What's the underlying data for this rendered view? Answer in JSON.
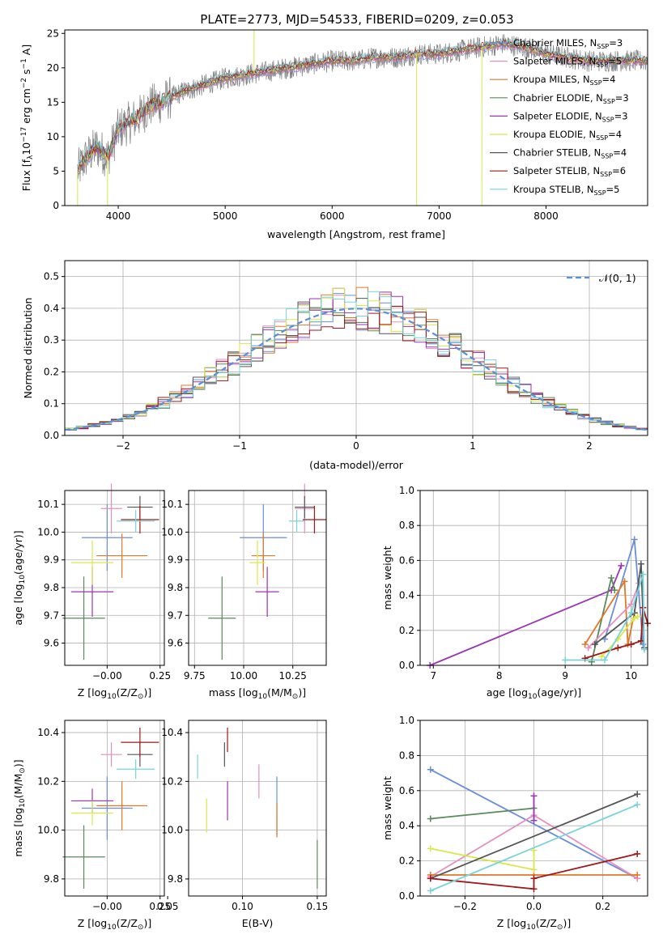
{
  "title": "PLATE=2773, MJD=54533, FIBERID=0209, z=0.053",
  "colors": {
    "chabrier_miles": "#6a8fd8",
    "salpeter_miles": "#e58fc0",
    "kroupa_miles": "#e0782a",
    "chabrier_elodie": "#5a8a5a",
    "salpeter_elodie": "#9a35b5",
    "kroupa_elodie": "#d8e84a",
    "chabrier_stelib": "#555555",
    "salpeter_stelib": "#a01818",
    "kroupa_stelib": "#78d4d8",
    "spectrum": "#808080"
  },
  "chart_data": [
    {
      "id": "spectrum",
      "type": "line",
      "xlabel": "wavelength [Angstrom, rest frame]",
      "ylabel": "Flux [f",
      "ylabel_sub": "λ",
      "ylabel_rest": "10",
      "ylabel_exp": "−17",
      "ylabel_units": " erg cm",
      "ylabel_units2": " s",
      "ylabel_units3": " A",
      "xlim": [
        3500,
        8950
      ],
      "ylim": [
        0,
        25.5
      ],
      "xticks": [
        "4000",
        "5000",
        "6000",
        "7000",
        "8000"
      ],
      "yticks": [
        "0",
        "5",
        "10",
        "15",
        "20",
        "25"
      ],
      "legend_position": "top-right",
      "legend": [
        {
          "label": "Chabrier MILES, N",
          "sub": "SSP",
          "val": "=3",
          "color_key": "chabrier_miles"
        },
        {
          "label": "Salpeter MILES, N",
          "sub": "SSP",
          "val": "=5",
          "color_key": "salpeter_miles"
        },
        {
          "label": "Kroupa MILES, N",
          "sub": "SSP",
          "val": "=4",
          "color_key": "kroupa_miles"
        },
        {
          "label": "Chabrier ELODIE, N",
          "sub": "SSP",
          "val": "=3",
          "color_key": "chabrier_elodie"
        },
        {
          "label": "Salpeter ELODIE, N",
          "sub": "SSP",
          "val": "=3",
          "color_key": "salpeter_elodie"
        },
        {
          "label": "Kroupa ELODIE, N",
          "sub": "SSP",
          "val": "=4",
          "color_key": "kroupa_elodie"
        },
        {
          "label": "Chabrier STELIB, N",
          "sub": "SSP",
          "val": "=4",
          "color_key": "chabrier_stelib"
        },
        {
          "label": "Salpeter STELIB, N",
          "sub": "SSP",
          "val": "=6",
          "color_key": "salpeter_stelib"
        },
        {
          "label": "Kroupa STELIB, N",
          "sub": "SSP",
          "val": "=5",
          "color_key": "kroupa_stelib"
        }
      ],
      "continuum": {
        "x": [
          3620,
          3700,
          3800,
          3900,
          4000,
          4100,
          4200,
          4300,
          4400,
          4600,
          4800,
          5000,
          5200,
          5400,
          5600,
          5800,
          6000,
          6200,
          6400,
          6600,
          6800,
          7000,
          7200,
          7400,
          7600,
          7800,
          8000,
          8200,
          8400,
          8600,
          8900
        ],
        "y": [
          5,
          7,
          8.5,
          7,
          11,
          12,
          13,
          14.5,
          15,
          16.5,
          17.5,
          18.5,
          19,
          19.5,
          20,
          20.5,
          21,
          21,
          21.5,
          21.5,
          22,
          22,
          22.5,
          23,
          23.5,
          23,
          22,
          21.5,
          21,
          21,
          21
        ]
      },
      "spikes": [
        {
          "x": 5270,
          "y": 25.5
        },
        {
          "x": 6790,
          "y": 0
        },
        {
          "x": 7400,
          "y": 0
        },
        {
          "x": 3620,
          "y": 0
        },
        {
          "x": 3900,
          "y": 0
        }
      ]
    },
    {
      "id": "residual_hist",
      "type": "histogram",
      "xlabel": "(data-model)/error",
      "ylabel": "Normed distribution",
      "xlim": [
        -2.5,
        2.5
      ],
      "ylim": [
        0,
        0.55
      ],
      "xticks": [
        "−2",
        "−1",
        "0",
        "1",
        "2"
      ],
      "yticks": [
        "0.0",
        "0.1",
        "0.2",
        "0.3",
        "0.4",
        "0.5"
      ],
      "bin_width": 0.1,
      "legend": {
        "label": "𝒩(0, 1)",
        "position": "top-right"
      },
      "normal": {
        "mean": 0,
        "sigma": 1
      }
    },
    {
      "id": "age_vs_Z",
      "type": "errorbar",
      "xlabel": "Z [log",
      "xlabel_sub": "10",
      "xlabel_rest": "(Z/Z",
      "ylabel": "age  [log",
      "ylabel_sub": "10",
      "ylabel_rest": "(age/yr)]",
      "xlim": [
        -0.2,
        0.27
      ],
      "ylim": [
        9.52,
        10.15
      ],
      "xticks": [
        "−0.00",
        "0.25"
      ],
      "yticks": [
        "9.6",
        "9.7",
        "9.8",
        "9.9",
        "10.0",
        "10.1"
      ],
      "points": [
        {
          "key": "chabrier_miles",
          "x": 0.0,
          "xerr": 0.12,
          "y": 9.98,
          "yerr": 0.12
        },
        {
          "key": "salpeter_miles",
          "x": 0.02,
          "xerr": 0.05,
          "y": 10.085,
          "yerr": 0.09
        },
        {
          "key": "kroupa_miles",
          "x": 0.07,
          "xerr": 0.12,
          "y": 9.915,
          "yerr": 0.08
        },
        {
          "key": "chabrier_elodie",
          "x": -0.11,
          "xerr": 0.1,
          "y": 9.69,
          "yerr": 0.15
        },
        {
          "key": "salpeter_elodie",
          "x": -0.07,
          "xerr": 0.1,
          "y": 9.785,
          "yerr": 0.09
        },
        {
          "key": "kroupa_elodie",
          "x": -0.07,
          "xerr": 0.1,
          "y": 9.89,
          "yerr": 0.08
        },
        {
          "key": "chabrier_stelib",
          "x": 0.155,
          "xerr": 0.06,
          "y": 10.09,
          "yerr": 0.04
        },
        {
          "key": "salpeter_stelib",
          "x": 0.155,
          "xerr": 0.09,
          "y": 10.045,
          "yerr": 0.05
        },
        {
          "key": "kroupa_stelib",
          "x": 0.135,
          "xerr": 0.09,
          "y": 10.04,
          "yerr": 0.04
        }
      ]
    },
    {
      "id": "age_vs_mass",
      "type": "errorbar",
      "xlabel": "mass [log",
      "xlabel_sub": "10",
      "xlabel_rest": "(M/M",
      "xlim": [
        9.72,
        10.42
      ],
      "ylim": [
        9.52,
        10.15
      ],
      "xticks": [
        "9.75",
        "10.00",
        "10.25"
      ],
      "yticks": [
        "9.6",
        "9.7",
        "9.8",
        "9.9",
        "10.0",
        "10.1"
      ],
      "points": [
        {
          "key": "chabrier_miles",
          "x": 10.1,
          "xerr": 0.12,
          "y": 9.98,
          "yerr": 0.12
        },
        {
          "key": "salpeter_miles",
          "x": 10.31,
          "xerr": 0.05,
          "y": 10.085,
          "yerr": 0.09
        },
        {
          "key": "kroupa_miles",
          "x": 10.1,
          "xerr": 0.06,
          "y": 9.915,
          "yerr": 0.08
        },
        {
          "key": "chabrier_elodie",
          "x": 9.89,
          "xerr": 0.07,
          "y": 9.69,
          "yerr": 0.15
        },
        {
          "key": "salpeter_elodie",
          "x": 10.12,
          "xerr": 0.06,
          "y": 9.785,
          "yerr": 0.09
        },
        {
          "key": "kroupa_elodie",
          "x": 10.07,
          "xerr": 0.04,
          "y": 9.89,
          "yerr": 0.08
        },
        {
          "key": "chabrier_stelib",
          "x": 10.31,
          "xerr": 0.05,
          "y": 10.09,
          "yerr": 0.04
        },
        {
          "key": "salpeter_stelib",
          "x": 10.36,
          "xerr": 0.06,
          "y": 10.045,
          "yerr": 0.05
        },
        {
          "key": "kroupa_stelib",
          "x": 10.27,
          "xerr": 0.04,
          "y": 10.04,
          "yerr": 0.04
        }
      ]
    },
    {
      "id": "weight_vs_age",
      "type": "line",
      "xlabel": "age  [log",
      "xlabel_sub": "10",
      "xlabel_rest": "(age/yr)]",
      "ylabel": "mass weight",
      "xlim": [
        6.8,
        10.25
      ],
      "ylim": [
        0,
        1
      ],
      "xticks": [
        "7",
        "8",
        "9",
        "10"
      ],
      "yticks": [
        "0.0",
        "0.2",
        "0.4",
        "0.6",
        "0.8",
        "1.0"
      ],
      "grid": true,
      "series": [
        {
          "key": "salpeter_elodie",
          "x": [
            6.95,
            9.7,
            9.85
          ],
          "y": [
            0.0,
            0.43,
            0.57
          ]
        },
        {
          "key": "chabrier_miles",
          "x": [
            9.6,
            10.05,
            10.18
          ],
          "y": [
            0.15,
            0.72,
            0.12
          ]
        },
        {
          "key": "chabrier_elodie",
          "x": [
            9.4,
            9.7,
            9.75
          ],
          "y": [
            0.02,
            0.5,
            0.43
          ]
        },
        {
          "key": "kroupa_miles",
          "x": [
            9.3,
            9.9,
            9.95,
            10.05
          ],
          "y": [
            0.12,
            0.48,
            0.12,
            0.3
          ]
        },
        {
          "key": "salpeter_miles",
          "x": [
            9.35,
            10.0,
            10.12
          ],
          "y": [
            0.1,
            0.35,
            0.47
          ]
        },
        {
          "key": "kroupa_elodie",
          "x": [
            9.55,
            9.8,
            10.05,
            10.1
          ],
          "y": [
            0.05,
            0.15,
            0.27,
            0.28
          ]
        },
        {
          "key": "chabrier_stelib",
          "x": [
            9.45,
            10.05,
            10.15,
            10.2
          ],
          "y": [
            0.12,
            0.3,
            0.58,
            0.1
          ]
        },
        {
          "key": "salpeter_stelib",
          "x": [
            9.3,
            9.8,
            10.0,
            10.15,
            10.18,
            10.25
          ],
          "y": [
            0.04,
            0.1,
            0.12,
            0.14,
            0.33,
            0.24
          ]
        },
        {
          "key": "kroupa_stelib",
          "x": [
            9.0,
            9.6,
            10.0,
            10.18,
            10.2
          ],
          "y": [
            0.03,
            0.03,
            0.3,
            0.52,
            0.09
          ]
        }
      ]
    },
    {
      "id": "mass_vs_Z",
      "type": "errorbar",
      "xlabel": "Z [log",
      "xlabel_sub": "10",
      "xlabel_rest": "(Z/Z",
      "ylabel": "mass [log",
      "ylabel_sub": "10",
      "ylabel_rest": "(M/M",
      "xlim": [
        -0.2,
        0.27
      ],
      "ylim": [
        9.73,
        10.45
      ],
      "xticks": [
        "−0.00",
        "0.25"
      ],
      "yticks": [
        "9.8",
        "10.0",
        "10.2",
        "10.4"
      ],
      "points": [
        {
          "key": "chabrier_miles",
          "x": 0.0,
          "xerr": 0.12,
          "y": 10.09,
          "yerr": 0.13
        },
        {
          "key": "salpeter_miles",
          "x": 0.02,
          "xerr": 0.05,
          "y": 10.31,
          "yerr": 0.05
        },
        {
          "key": "kroupa_miles",
          "x": 0.07,
          "xerr": 0.12,
          "y": 10.1,
          "yerr": 0.1
        },
        {
          "key": "chabrier_elodie",
          "x": -0.11,
          "xerr": 0.1,
          "y": 9.89,
          "yerr": 0.13
        },
        {
          "key": "salpeter_elodie",
          "x": -0.07,
          "xerr": 0.1,
          "y": 10.12,
          "yerr": 0.05
        },
        {
          "key": "kroupa_elodie",
          "x": -0.07,
          "xerr": 0.1,
          "y": 10.07,
          "yerr": 0.05
        },
        {
          "key": "chabrier_stelib",
          "x": 0.155,
          "xerr": 0.06,
          "y": 10.31,
          "yerr": 0.05
        },
        {
          "key": "salpeter_stelib",
          "x": 0.155,
          "xerr": 0.09,
          "y": 10.36,
          "yerr": 0.06
        },
        {
          "key": "kroupa_stelib",
          "x": 0.135,
          "xerr": 0.09,
          "y": 10.25,
          "yerr": 0.04
        }
      ]
    },
    {
      "id": "mass_vs_ebv",
      "type": "errorbar",
      "xlabel": "E(B-V)",
      "xlim": [
        0.064,
        0.156
      ],
      "ylim": [
        9.73,
        10.45
      ],
      "xticks": [
        "0.05",
        "0.10",
        "0.15"
      ],
      "yticks": [
        "9.8",
        "10.0",
        "10.2",
        "10.4"
      ],
      "points": [
        {
          "key": "chabrier_miles",
          "x": 0.123,
          "xerr": 0.0,
          "y": 10.1,
          "yerr": 0.12
        },
        {
          "key": "salpeter_miles",
          "x": 0.111,
          "xerr": 0.0,
          "y": 10.2,
          "yerr": 0.07
        },
        {
          "key": "kroupa_miles",
          "x": 0.123,
          "xerr": 0.0,
          "y": 10.04,
          "yerr": 0.07
        },
        {
          "key": "chabrier_elodie",
          "x": 0.15,
          "xerr": 0.0,
          "y": 9.86,
          "yerr": 0.1
        },
        {
          "key": "salpeter_elodie",
          "x": 0.09,
          "xerr": 0.0,
          "y": 10.12,
          "yerr": 0.08
        },
        {
          "key": "kroupa_elodie",
          "x": 0.076,
          "xerr": 0.0,
          "y": 10.06,
          "yerr": 0.07
        },
        {
          "key": "chabrier_stelib",
          "x": 0.088,
          "xerr": 0.0,
          "y": 10.31,
          "yerr": 0.05
        },
        {
          "key": "salpeter_stelib",
          "x": 0.09,
          "xerr": 0.0,
          "y": 10.37,
          "yerr": 0.05
        },
        {
          "key": "kroupa_stelib",
          "x": 0.07,
          "xerr": 0.0,
          "y": 10.26,
          "yerr": 0.05
        }
      ]
    },
    {
      "id": "weight_vs_Z",
      "type": "line",
      "xlabel": "Z [log",
      "xlabel_sub": "10",
      "xlabel_rest": "(Z/Z",
      "ylabel": "mass weight",
      "xlim": [
        -0.33,
        0.33
      ],
      "ylim": [
        0,
        1
      ],
      "xticks": [
        "−0.2",
        "0.0",
        "0.2"
      ],
      "yticks": [
        "0.0",
        "0.2",
        "0.4",
        "0.6",
        "0.8",
        "1.0"
      ],
      "grid": true,
      "series": [
        {
          "key": "chabrier_miles",
          "x": [
            -0.3,
            0.3
          ],
          "y": [
            0.72,
            0.1
          ]
        },
        {
          "key": "salpeter_miles",
          "x": [
            -0.3,
            0.0,
            0.3
          ],
          "y": [
            0.11,
            0.46,
            0.1
          ]
        },
        {
          "key": "kroupa_miles",
          "x": [
            -0.3,
            0.0,
            0.3
          ],
          "y": [
            0.12,
            0.12,
            0.12
          ]
        },
        {
          "key": "chabrier_elodie",
          "x": [
            -0.3,
            0.0
          ],
          "y": [
            0.44,
            0.5
          ]
        },
        {
          "key": "salpeter_elodie",
          "x": [
            0.0,
            0.0
          ],
          "y": [
            0.57,
            0.43
          ]
        },
        {
          "key": "kroupa_elodie",
          "x": [
            -0.3,
            0.0,
            0.0
          ],
          "y": [
            0.27,
            0.15,
            0.26
          ]
        },
        {
          "key": "chabrier_stelib",
          "x": [
            -0.3,
            0.3
          ],
          "y": [
            0.1,
            0.58
          ]
        },
        {
          "key": "salpeter_stelib",
          "x": [
            -0.3,
            0.0,
            0.0,
            0.3
          ],
          "y": [
            0.1,
            0.04,
            0.1,
            0.24
          ]
        },
        {
          "key": "kroupa_stelib",
          "x": [
            -0.3,
            0.3
          ],
          "y": [
            0.03,
            0.52
          ]
        }
      ]
    }
  ]
}
